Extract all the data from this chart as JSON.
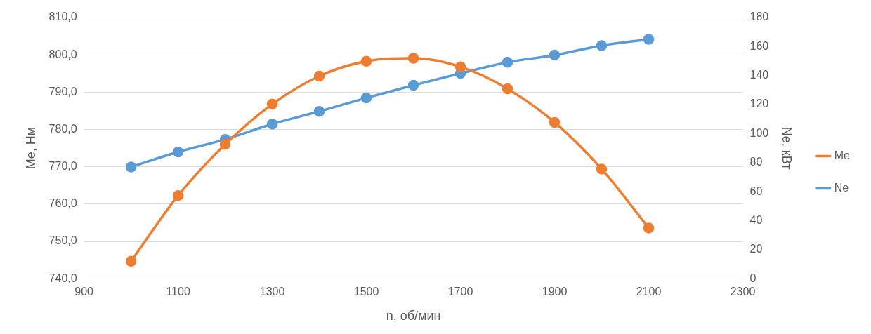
{
  "chart_data": {
    "type": "line",
    "xlabel": "n, об/мин",
    "ylabel": "Me, Нм",
    "y2label": "Ne, кВт",
    "x": [
      1000,
      1100,
      1200,
      1300,
      1400,
      1500,
      1600,
      1700,
      1800,
      1900,
      2000,
      2100
    ],
    "series": [
      {
        "name": "Me",
        "color": "#ed7d31",
        "values": [
          744.7,
          762.3,
          776,
          786.8,
          794.3,
          798.3,
          799.1,
          796.8,
          790.9,
          781.9,
          769.4,
          753.6
        ]
      },
      {
        "name": "Ne",
        "color": "#5b9bd5",
        "axis": "y2",
        "values": [
          77,
          87.4,
          96,
          106.6,
          115.3,
          124.6,
          133.3,
          141.5,
          149.2,
          154.1,
          160.7,
          165
        ]
      }
    ],
    "xlim": [
      900,
      2300
    ],
    "xticks": [
      900,
      1100,
      1300,
      1500,
      1700,
      1900,
      2100,
      2300
    ],
    "ylim": [
      740,
      810
    ],
    "yticks": [
      {
        "value": 740,
        "label": "740,0"
      },
      {
        "value": 750,
        "label": "750,0"
      },
      {
        "value": 760,
        "label": "760,0"
      },
      {
        "value": 770,
        "label": "770,0"
      },
      {
        "value": 780,
        "label": "780,0"
      },
      {
        "value": 790,
        "label": "790,0"
      },
      {
        "value": 800,
        "label": "800,0"
      },
      {
        "value": 810,
        "label": "810,0"
      }
    ],
    "y2lim": [
      0,
      180
    ],
    "y2ticks": [
      0,
      20,
      40,
      60,
      80,
      100,
      120,
      140,
      160,
      180
    ],
    "grid": "y",
    "legend": "right",
    "marker": "circle",
    "line_style": "solid"
  }
}
